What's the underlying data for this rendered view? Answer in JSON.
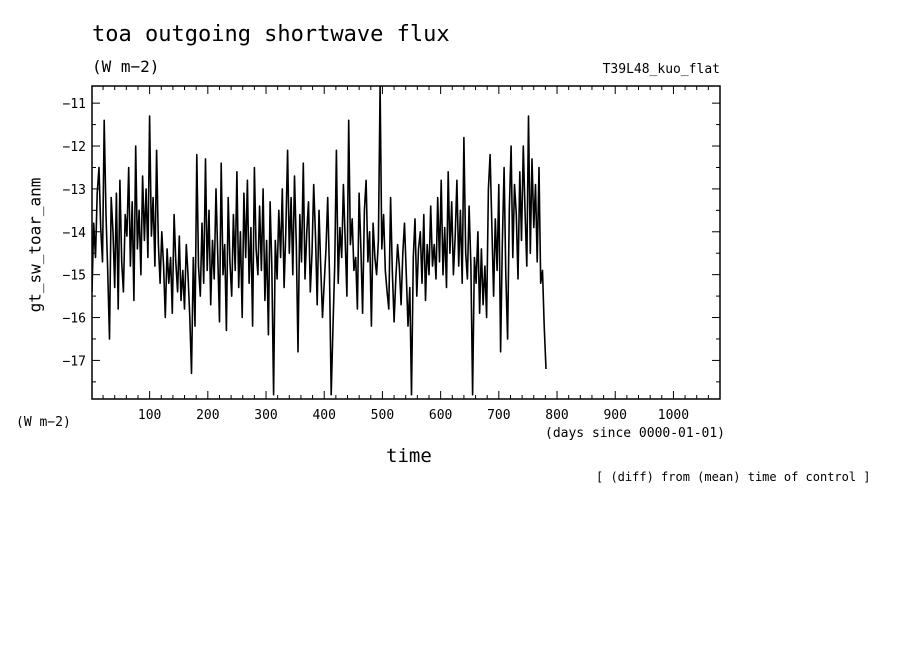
{
  "title": "toa outgoing shortwave flux",
  "unit_top": "(W m−2)",
  "experiment": "T39L48_kuo_flat",
  "unit_left": "(W m−2)",
  "xlabel": "time",
  "xunit": "(days since 0000-01-01)",
  "footnote": "[ (diff) from (mean) time of control ]",
  "chart_data": {
    "type": "line",
    "title": "toa outgoing shortwave flux",
    "ylabel": "gt_sw_toar_anm",
    "xlabel": "time",
    "xlim": [
      1,
      1080
    ],
    "ylim": [
      -17.9,
      -10.6
    ],
    "x_ticks": [
      100,
      200,
      300,
      400,
      500,
      600,
      700,
      800,
      900,
      1000
    ],
    "y_ticks": [
      -11,
      -12,
      -13,
      -14,
      -15,
      -16,
      -17
    ],
    "y_tick_labels": [
      "−11",
      "−12",
      "−13",
      "−14",
      "−15",
      "−16",
      "−17"
    ],
    "grid": false,
    "series": [
      {
        "x_start": 1,
        "x_step": 3,
        "values": [
          -15.4,
          -13.8,
          -14.6,
          -13.1,
          -12.5,
          -13.9,
          -14.7,
          -11.4,
          -13.6,
          -14.9,
          -16.5,
          -13.2,
          -14.0,
          -15.3,
          -13.1,
          -15.8,
          -12.8,
          -14.7,
          -15.4,
          -13.6,
          -14.1,
          -12.5,
          -14.8,
          -13.3,
          -15.6,
          -12.0,
          -14.4,
          -13.5,
          -15.0,
          -12.7,
          -14.2,
          -13.0,
          -14.6,
          -11.3,
          -14.1,
          -13.2,
          -14.8,
          -12.1,
          -14.3,
          -15.2,
          -14.0,
          -14.8,
          -16.0,
          -14.4,
          -15.2,
          -14.6,
          -15.9,
          -13.6,
          -14.7,
          -15.4,
          -14.1,
          -15.6,
          -14.9,
          -15.8,
          -14.3,
          -15.0,
          -16.0,
          -17.3,
          -14.6,
          -16.2,
          -12.2,
          -14.8,
          -15.5,
          -13.8,
          -15.2,
          -12.3,
          -14.9,
          -13.5,
          -15.7,
          -14.2,
          -15.1,
          -13.0,
          -14.5,
          -16.1,
          -12.4,
          -15.0,
          -14.3,
          -16.3,
          -13.2,
          -14.7,
          -15.5,
          -13.6,
          -14.9,
          -12.6,
          -15.3,
          -14.0,
          -16.0,
          -13.1,
          -14.6,
          -12.8,
          -15.2,
          -13.9,
          -16.2,
          -12.5,
          -14.4,
          -15.0,
          -13.4,
          -14.9,
          -13.0,
          -15.6,
          -14.2,
          -16.4,
          -13.3,
          -14.8,
          -17.8,
          -14.2,
          -15.1,
          -13.5,
          -14.6,
          -13.0,
          -15.3,
          -14.0,
          -12.1,
          -14.5,
          -13.2,
          -15.0,
          -12.7,
          -14.3,
          -16.8,
          -13.6,
          -14.7,
          -12.4,
          -15.1,
          -14.0,
          -13.3,
          -15.4,
          -14.5,
          -12.9,
          -14.1,
          -15.7,
          -13.5,
          -14.8,
          -16.0,
          -15.2,
          -14.4,
          -13.2,
          -15.0,
          -17.8,
          -16.2,
          -14.8,
          -12.1,
          -15.2,
          -13.9,
          -14.6,
          -12.9,
          -14.2,
          -15.5,
          -11.4,
          -14.3,
          -13.7,
          -14.9,
          -14.6,
          -15.8,
          -13.1,
          -14.4,
          -15.9,
          -13.5,
          -12.8,
          -14.7,
          -14.0,
          -16.2,
          -13.8,
          -14.6,
          -15.0,
          -14.2,
          -10.6,
          -14.4,
          -13.6,
          -14.9,
          -15.4,
          -15.8,
          -13.2,
          -14.9,
          -16.1,
          -15.1,
          -14.3,
          -14.8,
          -15.7,
          -14.5,
          -13.8,
          -15.0,
          -16.2,
          -15.3,
          -17.8,
          -14.6,
          -13.7,
          -15.5,
          -14.4,
          -14.0,
          -15.2,
          -13.6,
          -15.6,
          -14.3,
          -15.0,
          -13.4,
          -14.8,
          -14.3,
          -15.1,
          -13.2,
          -14.7,
          -12.8,
          -15.0,
          -13.9,
          -15.3,
          -12.6,
          -14.5,
          -13.3,
          -15.0,
          -14.1,
          -12.8,
          -14.8,
          -13.5,
          -15.2,
          -11.8,
          -14.5,
          -15.1,
          -13.4,
          -14.8,
          -17.8,
          -14.6,
          -15.2,
          -14.0,
          -15.9,
          -14.4,
          -15.7,
          -14.8,
          -16.0,
          -13.0,
          -12.2,
          -13.8,
          -15.5,
          -13.7,
          -14.9,
          -12.9,
          -16.8,
          -14.3,
          -12.5,
          -15.0,
          -16.5,
          -13.5,
          -12.0,
          -14.6,
          -12.9,
          -13.6,
          -15.1,
          -12.6,
          -14.2,
          -12.0,
          -13.5,
          -14.8,
          -11.3,
          -14.5,
          -12.3,
          -13.9,
          -12.9,
          -14.7,
          -12.5,
          -15.2,
          -14.9,
          -16.2,
          -17.2
        ]
      }
    ]
  }
}
